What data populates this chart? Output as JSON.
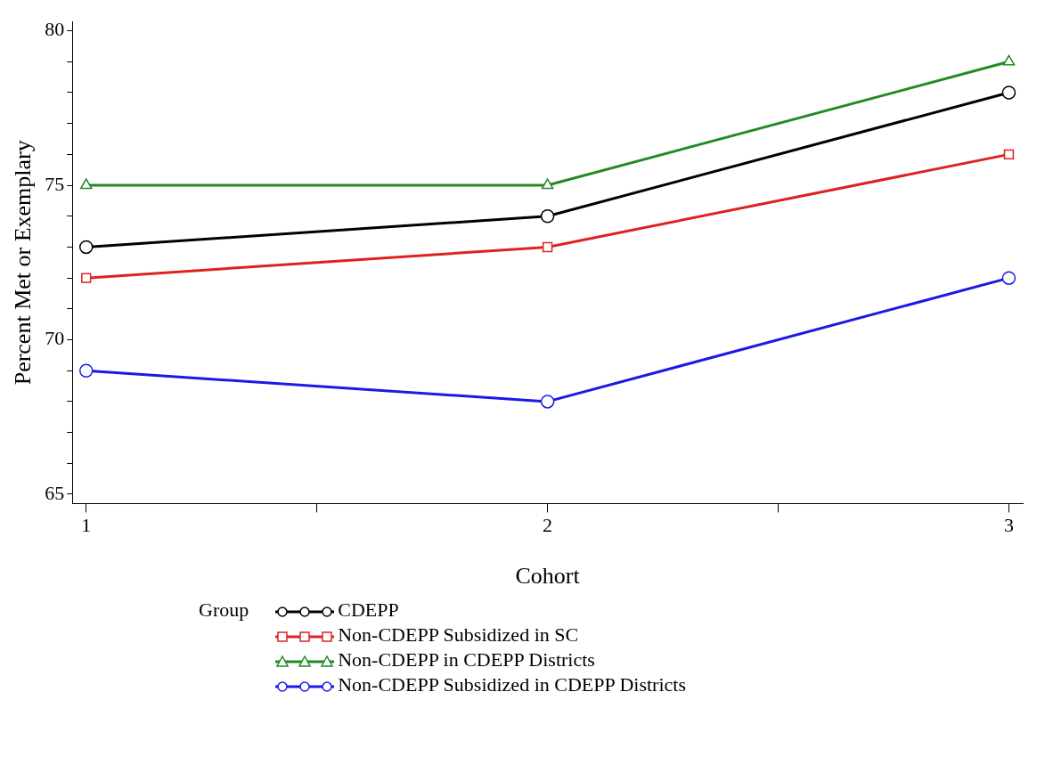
{
  "chart_data": {
    "type": "line",
    "xlabel": "Cohort",
    "ylabel": "Percent Met or Exemplary",
    "legend_title": "Group",
    "x": [
      1,
      2,
      3
    ],
    "series": [
      {
        "name": "CDEPP",
        "color": "#000000",
        "values": [
          73,
          74,
          78
        ],
        "marker": "circle"
      },
      {
        "name": "Non-CDEPP Subsidized in SC",
        "color": "#dd2222",
        "values": [
          72,
          73,
          76
        ],
        "marker": "square"
      },
      {
        "name": "Non-CDEPP in CDEPP Districts",
        "color": "#228b22",
        "values": [
          75,
          75,
          79
        ],
        "marker": "triangle"
      },
      {
        "name": "Non-CDEPP Subsidized in CDEPP Districts",
        "color": "#1a1ae6",
        "values": [
          69,
          68,
          72
        ],
        "marker": "circle"
      }
    ],
    "xlim": [
      0.97,
      3.03
    ],
    "xticks": [
      1,
      {
        "value": 1.5,
        "label": null
      },
      2,
      {
        "value": 2.5,
        "label": null
      },
      3
    ],
    "ylim": [
      64.7,
      80.3
    ],
    "yticks": [
      65,
      {
        "value": 66,
        "label": null
      },
      {
        "value": 67,
        "label": null
      },
      {
        "value": 68,
        "label": null
      },
      {
        "value": 69,
        "label": null
      },
      70,
      {
        "value": 71,
        "label": null
      },
      {
        "value": 72,
        "label": null
      },
      {
        "value": 73,
        "label": null
      },
      {
        "value": 74,
        "label": null
      },
      75,
      {
        "value": 76,
        "label": null
      },
      {
        "value": 77,
        "label": null
      },
      {
        "value": 78,
        "label": null
      },
      {
        "value": 79,
        "label": null
      },
      80
    ],
    "legend": "bottom",
    "grid": false,
    "line_style": "solid"
  }
}
